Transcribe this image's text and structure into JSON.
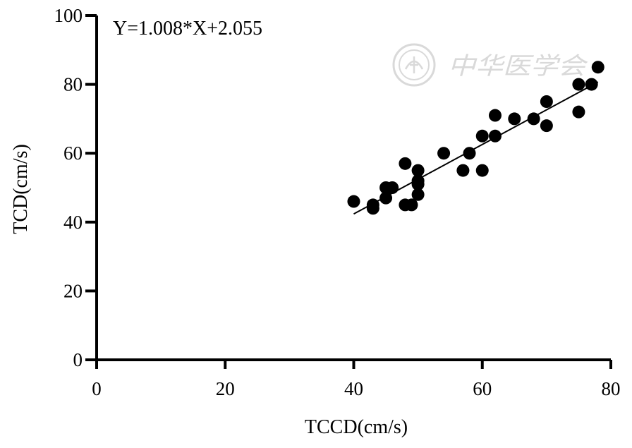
{
  "chart_data": {
    "type": "scatter",
    "title": "",
    "xlabel": "TCCD(cm/s)",
    "ylabel": "TCD(cm/s)",
    "xlim": [
      0,
      80
    ],
    "ylim": [
      0,
      100
    ],
    "x_ticks": [
      0,
      20,
      40,
      60,
      80
    ],
    "y_ticks": [
      0,
      20,
      40,
      60,
      80,
      100
    ],
    "grid": false,
    "annotation": "Y=1.008*X+2.055",
    "regression": {
      "slope": 1.008,
      "intercept": 2.055,
      "x_range": [
        40,
        78
      ]
    },
    "marker_color": "#000000",
    "points": [
      {
        "x": 40,
        "y": 46
      },
      {
        "x": 43,
        "y": 45
      },
      {
        "x": 43,
        "y": 44
      },
      {
        "x": 45,
        "y": 50
      },
      {
        "x": 45,
        "y": 47
      },
      {
        "x": 46,
        "y": 50
      },
      {
        "x": 48,
        "y": 57
      },
      {
        "x": 48,
        "y": 45
      },
      {
        "x": 49,
        "y": 45
      },
      {
        "x": 50,
        "y": 55
      },
      {
        "x": 50,
        "y": 52
      },
      {
        "x": 50,
        "y": 51
      },
      {
        "x": 50,
        "y": 48
      },
      {
        "x": 54,
        "y": 60
      },
      {
        "x": 57,
        "y": 55
      },
      {
        "x": 58,
        "y": 60
      },
      {
        "x": 60,
        "y": 65
      },
      {
        "x": 60,
        "y": 55
      },
      {
        "x": 62,
        "y": 71
      },
      {
        "x": 62,
        "y": 65
      },
      {
        "x": 65,
        "y": 70
      },
      {
        "x": 68,
        "y": 70
      },
      {
        "x": 70,
        "y": 75
      },
      {
        "x": 70,
        "y": 68
      },
      {
        "x": 75,
        "y": 80
      },
      {
        "x": 75,
        "y": 72
      },
      {
        "x": 77,
        "y": 80
      },
      {
        "x": 78,
        "y": 85
      }
    ]
  },
  "watermark": {
    "text": "中华医学会",
    "color": "#d9d9d9",
    "icon": "society-seal-icon"
  }
}
